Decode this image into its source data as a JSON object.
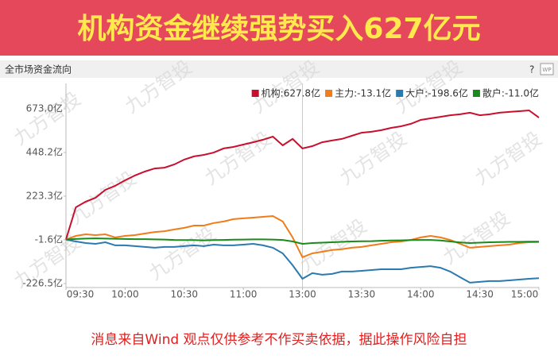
{
  "banner": "机构资金继续强势买入627亿元",
  "panel_title": "全市场资金流向",
  "help": "?",
  "icon_label": "WP",
  "watermark": "九方智投",
  "footer": "消息来自Wind  观点仅供参考不作买卖依据，据此操作风险自担",
  "chart_data": {
    "type": "line",
    "categories": [
      "09:30",
      "09:35",
      "09:40",
      "09:45",
      "09:50",
      "09:55",
      "10:00",
      "10:05",
      "10:10",
      "10:15",
      "10:20",
      "10:25",
      "10:30",
      "10:35",
      "10:40",
      "10:45",
      "10:50",
      "10:55",
      "11:00",
      "11:05",
      "11:10",
      "11:15",
      "11:20",
      "11:25",
      "13:00",
      "13:05",
      "13:10",
      "13:15",
      "13:20",
      "13:25",
      "13:30",
      "13:35",
      "13:40",
      "13:45",
      "13:50",
      "13:55",
      "14:00",
      "14:05",
      "14:10",
      "14:15",
      "14:20",
      "14:25",
      "14:30",
      "14:35",
      "14:40",
      "14:45",
      "14:50",
      "14:55",
      "15:00"
    ],
    "xticks": [
      "09:30",
      "10:00",
      "10:30",
      "11:00",
      "13:00",
      "13:30",
      "14:00",
      "14:30",
      "15:00"
    ],
    "series": [
      {
        "name": "机构:627.8亿",
        "color": "#c8102e",
        "values": [
          0,
          166,
          195,
          215,
          256,
          277,
          305,
          330,
          350,
          366,
          370,
          387,
          412,
          428,
          436,
          448,
          469,
          477,
          489,
          501,
          514,
          530,
          485,
          518,
          469,
          481,
          501,
          510,
          518,
          534,
          550,
          555,
          563,
          575,
          583,
          596,
          616,
          624,
          632,
          640,
          645,
          653,
          640,
          645,
          653,
          657,
          661,
          665,
          627.8
        ]
      },
      {
        "name": "主力:-13.1亿",
        "color": "#f07c1a",
        "values": [
          0,
          19,
          27,
          23,
          27,
          11,
          19,
          23,
          31,
          39,
          43,
          52,
          60,
          72,
          72,
          85,
          93,
          105,
          109,
          113,
          117,
          121,
          93,
          11,
          -91,
          -71,
          -63,
          -54,
          -50,
          -42,
          -38,
          -30,
          -22,
          -14,
          -10,
          -2,
          11,
          19,
          11,
          -2,
          -22,
          -42,
          -38,
          -34,
          -30,
          -26,
          -18,
          -14,
          -13.1
        ]
      },
      {
        "name": "大户:-198.6亿",
        "color": "#2a7ab0",
        "values": [
          0,
          -10,
          -18,
          -22,
          -14,
          -30,
          -30,
          -34,
          -38,
          -42,
          -38,
          -38,
          -34,
          -30,
          -34,
          -26,
          -30,
          -30,
          -26,
          -22,
          -30,
          -42,
          -71,
          -132,
          -202,
          -173,
          -181,
          -177,
          -165,
          -165,
          -161,
          -157,
          -153,
          -153,
          -153,
          -145,
          -141,
          -137,
          -145,
          -165,
          -194,
          -222,
          -218,
          -214,
          -214,
          -210,
          -206,
          -202,
          -198.6
        ]
      },
      {
        "name": "散户:-11.0亿",
        "color": "#1a8a1a",
        "values": [
          0,
          3,
          5,
          6,
          5,
          4,
          3,
          2,
          2,
          1,
          0,
          -2,
          -3,
          -3,
          -4,
          -3,
          -2,
          -1,
          0,
          1,
          1,
          0,
          -2,
          -10,
          -22,
          -18,
          -16,
          -14,
          -12,
          -10,
          -9,
          -8,
          -6,
          -5,
          -4,
          -3,
          -2,
          -2,
          -5,
          -10,
          -15,
          -18,
          -16,
          -14,
          -13,
          -12,
          -12,
          -11,
          -11.0
        ]
      }
    ],
    "ylim": [
      -247,
      804
    ],
    "yticks": [
      {
        "value": 673.0,
        "label": "673.0亿"
      },
      {
        "value": 448.2,
        "label": "448.2亿"
      },
      {
        "value": 223.3,
        "label": "223.3亿"
      },
      {
        "value": -1.6,
        "label": "-1.6亿"
      },
      {
        "value": -226.5,
        "label": "-226.5亿"
      }
    ],
    "grid": false
  }
}
